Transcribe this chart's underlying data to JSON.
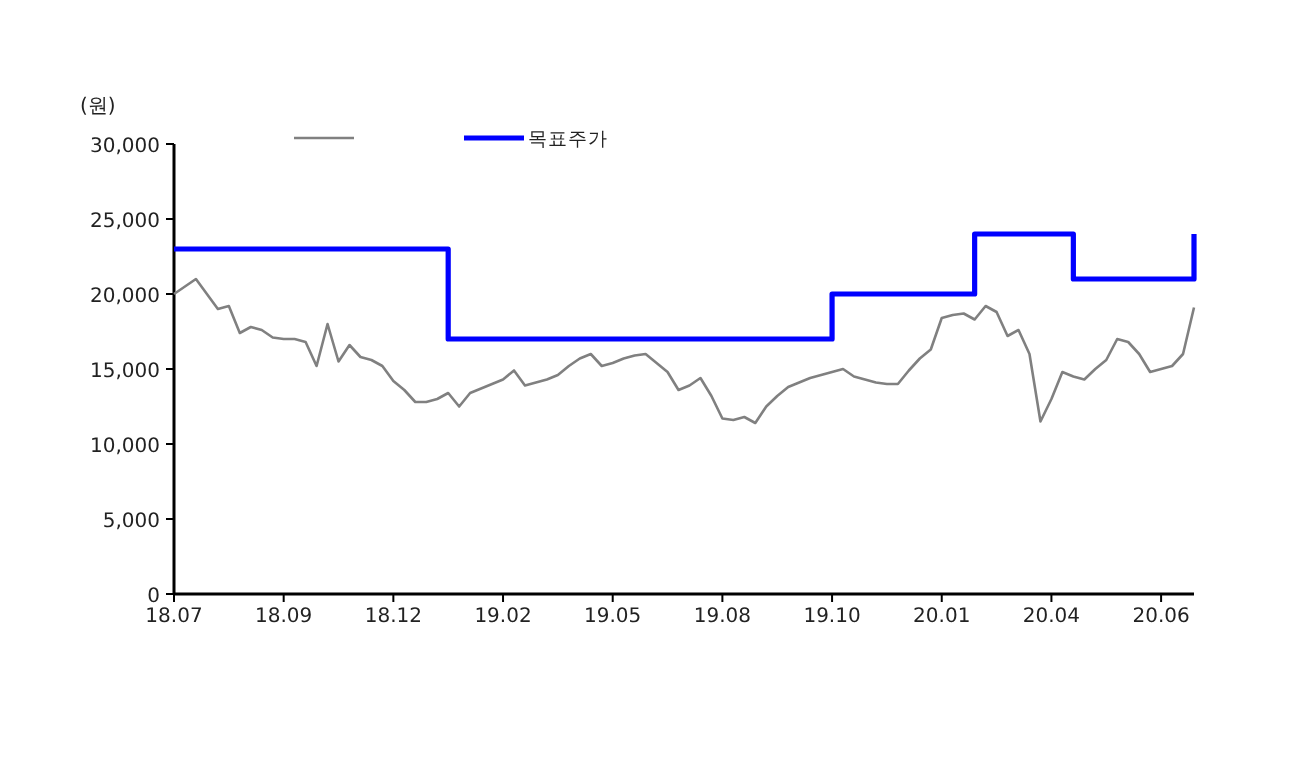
{
  "chart_data": {
    "type": "line",
    "ylabel": "(원)",
    "categories": [
      "18.07",
      null,
      null,
      null,
      null,
      null,
      null,
      null,
      null,
      null,
      "18.09",
      null,
      null,
      null,
      null,
      null,
      null,
      null,
      null,
      null,
      "18.12",
      null,
      null,
      null,
      null,
      null,
      null,
      null,
      null,
      null,
      "19.02",
      null,
      null,
      null,
      null,
      null,
      null,
      null,
      null,
      null,
      "19.05",
      null,
      null,
      null,
      null,
      null,
      null,
      null,
      null,
      null,
      "19.08",
      null,
      null,
      null,
      null,
      null,
      null,
      null,
      null,
      null,
      "19.10",
      null,
      null,
      null,
      null,
      null,
      null,
      null,
      null,
      null,
      "20.01",
      null,
      null,
      null,
      null,
      null,
      null,
      null,
      null,
      null,
      "20.04",
      null,
      null,
      null,
      null,
      null,
      null,
      null,
      null,
      null,
      "20.06",
      null,
      null,
      null
    ],
    "ylim": [
      0,
      30000
    ],
    "yticks": [
      {
        "value": 0,
        "label": "0"
      },
      {
        "value": 5000,
        "label": "5,000"
      },
      {
        "value": 10000,
        "label": "10,000"
      },
      {
        "value": 15000,
        "label": "15,000"
      },
      {
        "value": 20000,
        "label": "20,000"
      },
      {
        "value": 25000,
        "label": "25,000"
      },
      {
        "value": 30000,
        "label": "30,000"
      }
    ],
    "grid": false,
    "legend": "top",
    "marker": "none",
    "series": [
      {
        "color": "#808080",
        "values": [
          20000,
          20500,
          21000,
          20000,
          19000,
          19200,
          17400,
          17800,
          17600,
          17100,
          17000,
          17000,
          16800,
          15200,
          18000,
          15500,
          16600,
          15800,
          15600,
          15200,
          14200,
          13600,
          12800,
          12800,
          13000,
          13400,
          12500,
          13400,
          13700,
          14000,
          14300,
          14900,
          13900,
          14100,
          14300,
          14600,
          15200,
          15700,
          16000,
          15200,
          15400,
          15700,
          15900,
          16000,
          15400,
          14800,
          13600,
          13900,
          14400,
          13200,
          11700,
          11600,
          11800,
          11400,
          12500,
          13200,
          13800,
          14100,
          14400,
          14600,
          14800,
          15000,
          14500,
          14300,
          14100,
          14000,
          14000,
          14900,
          15700,
          16300,
          18400,
          18600,
          18700,
          18300,
          19200,
          18800,
          17200,
          17600,
          16000,
          11500,
          13000,
          14800,
          14500,
          14300,
          15000,
          15600,
          17000,
          16800,
          16000,
          14800,
          15000,
          15200,
          16000,
          19100
        ]
      },
      {
        "type": "step",
        "name": "목표주가",
        "color": "#0000ff",
        "values": [
          23000,
          23000,
          23000,
          23000,
          23000,
          23000,
          23000,
          23000,
          23000,
          23000,
          23000,
          23000,
          23000,
          23000,
          23000,
          23000,
          23000,
          23000,
          23000,
          23000,
          23000,
          23000,
          23000,
          23000,
          23000,
          17000,
          17000,
          17000,
          17000,
          17000,
          17000,
          17000,
          17000,
          17000,
          17000,
          17000,
          17000,
          17000,
          17000,
          17000,
          17000,
          17000,
          17000,
          17000,
          17000,
          17000,
          17000,
          17000,
          17000,
          17000,
          17000,
          17000,
          17000,
          17000,
          17000,
          17000,
          17000,
          17000,
          17000,
          17000,
          20000,
          20000,
          20000,
          20000,
          20000,
          20000,
          20000,
          20000,
          20000,
          20000,
          20000,
          20000,
          20000,
          24000,
          24000,
          24000,
          24000,
          24000,
          24000,
          24000,
          24000,
          24000,
          21000,
          21000,
          21000,
          21000,
          21000,
          21000,
          21000,
          21000,
          21000,
          21000,
          21000,
          24000
        ]
      }
    ]
  }
}
